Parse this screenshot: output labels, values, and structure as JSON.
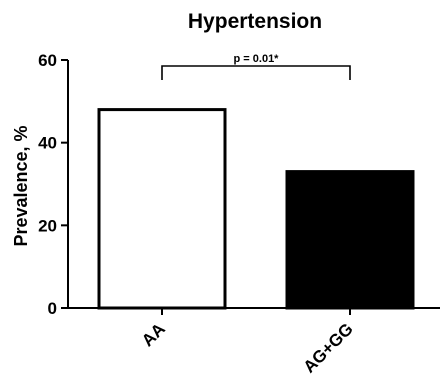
{
  "chart_data": {
    "type": "bar",
    "title": "Hypertension",
    "xlabel": "",
    "ylabel": "Prevalence, %",
    "categories": [
      "AA",
      "AG+GG"
    ],
    "values": [
      48,
      33
    ],
    "ylim": [
      0,
      60
    ],
    "yticks": [
      0,
      20,
      40,
      60
    ],
    "bar_fills": [
      "#ffffff",
      "#000000"
    ],
    "bar_stroke": "#000000",
    "grid": false,
    "legend": "none",
    "annotation": {
      "text": "p = 0.01*",
      "between": [
        "AA",
        "AG+GG"
      ]
    }
  }
}
